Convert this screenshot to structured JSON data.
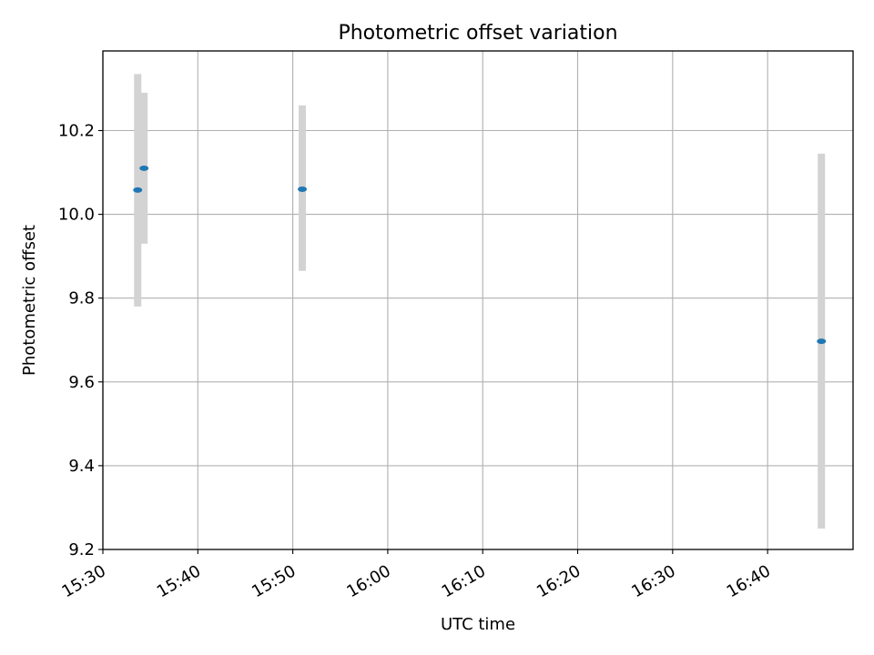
{
  "chart_data": {
    "type": "scatter",
    "title": "Photometric offset variation",
    "xlabel": "UTC time",
    "ylabel": "Photometric offset",
    "x_ticks": [
      "15:30",
      "15:40",
      "15:50",
      "16:00",
      "16:10",
      "16:20",
      "16:30",
      "16:40"
    ],
    "xlim": [
      "15:30",
      "16:49"
    ],
    "y_ticks": [
      "9.2",
      "9.4",
      "9.6",
      "9.8",
      "10.0",
      "10.2"
    ],
    "ylim": [
      9.2,
      10.39
    ],
    "grid": true,
    "points": [
      {
        "x": "15:33:40",
        "y": 10.058,
        "yerr_low": 9.78,
        "yerr_high": 10.335
      },
      {
        "x": "15:34:20",
        "y": 10.11,
        "yerr_low": 9.93,
        "yerr_high": 10.29
      },
      {
        "x": "15:51:00",
        "y": 10.06,
        "yerr_low": 9.865,
        "yerr_high": 10.26
      },
      {
        "x": "16:45:40",
        "y": 9.697,
        "yerr_low": 9.25,
        "yerr_high": 10.145
      }
    ],
    "colors": {
      "point": "#1f77b4",
      "error_bar": "#d3d3d3",
      "grid": "#b0b0b0"
    }
  }
}
